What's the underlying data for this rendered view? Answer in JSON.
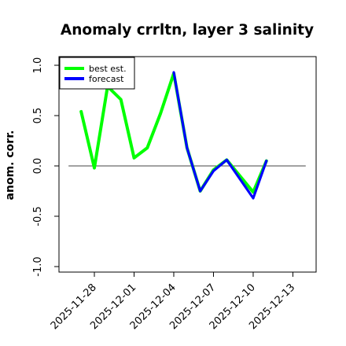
{
  "chart_data": {
    "type": "line",
    "title": "Anomaly crrltn, layer 3 salinity",
    "xlabel": "",
    "ylabel": "anom. corr.",
    "ylim": [
      -1.0,
      1.0
    ],
    "yticks": [
      -1.0,
      -0.5,
      0.0,
      0.5,
      1.0
    ],
    "ytick_labels": [
      "-1.0",
      "-0.5",
      "0.0",
      "0.5",
      "1.0"
    ],
    "x_ticks": [
      {
        "date": "2025-11-28",
        "color": "#000000"
      },
      {
        "date": "2025-12-01",
        "color": "#000000"
      },
      {
        "date": "2025-12-04",
        "color": "#228b22"
      },
      {
        "date": "2025-12-07",
        "color": "#000000"
      },
      {
        "date": "2025-12-10",
        "color": "#000000"
      },
      {
        "date": "2025-12-13",
        "color": "#000000"
      }
    ],
    "reference_line": 0.0,
    "legend": {
      "position": "top-left"
    },
    "series": [
      {
        "name": "best est.",
        "color": "#00ff00",
        "x": [
          "2025-11-27",
          "2025-11-28",
          "2025-11-29",
          "2025-11-30",
          "2025-12-01",
          "2025-12-02",
          "2025-12-03",
          "2025-12-04",
          "2025-12-05",
          "2025-12-06",
          "2025-12-07",
          "2025-12-08",
          "2025-12-09",
          "2025-12-10",
          "2025-12-11"
        ],
        "values": [
          0.54,
          -0.02,
          0.79,
          0.66,
          0.08,
          0.18,
          0.52,
          0.92,
          0.18,
          -0.25,
          -0.04,
          0.06,
          -0.1,
          -0.26,
          0.05
        ]
      },
      {
        "name": "forecast",
        "color": "#0000ff",
        "x": [
          "2025-12-04",
          "2025-12-05",
          "2025-12-06",
          "2025-12-07",
          "2025-12-08",
          "2025-12-09",
          "2025-12-10",
          "2025-12-11"
        ],
        "values": [
          0.93,
          0.18,
          -0.25,
          -0.05,
          0.06,
          -0.13,
          -0.32,
          0.05
        ]
      }
    ]
  }
}
